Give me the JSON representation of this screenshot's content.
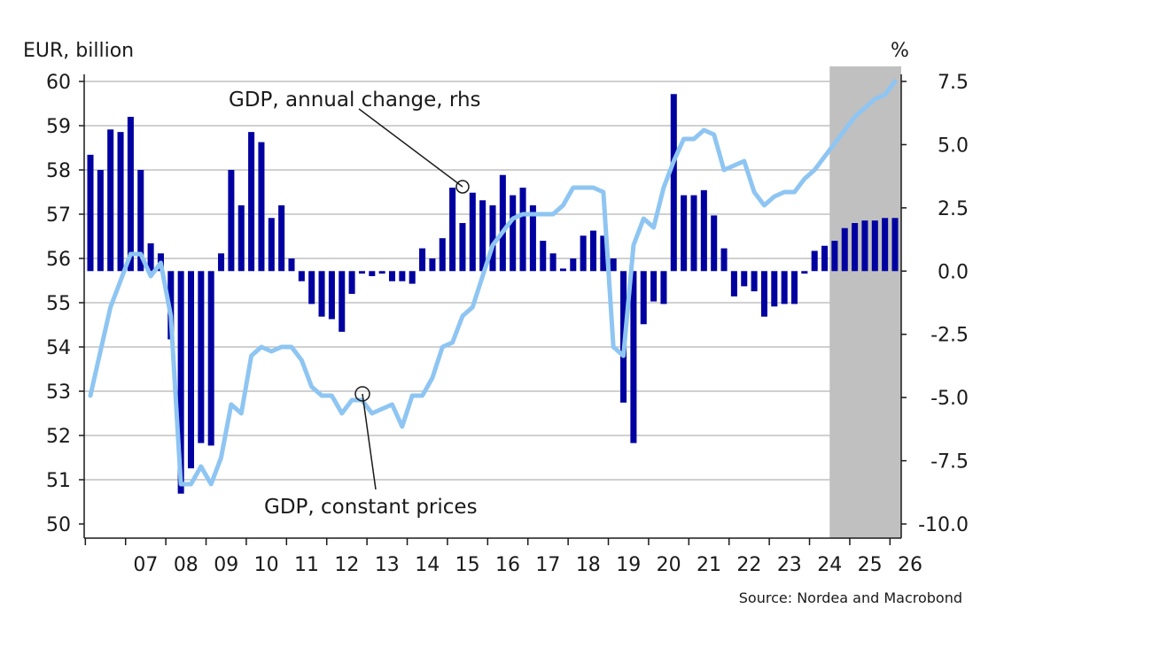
{
  "chart_data": {
    "type": "bar",
    "ylabel": "EUR, billion",
    "y2label": "%",
    "ylim": [
      50,
      60
    ],
    "y2lim": [
      -10,
      7.5
    ],
    "yticks": [
      "60",
      "59",
      "58",
      "57",
      "56",
      "55",
      "54",
      "53",
      "52",
      "51",
      "50"
    ],
    "y2ticks": [
      "7.5",
      "5.0",
      "2.5",
      "0.0",
      "-2.5",
      "-5.0",
      "-7.5",
      "-10.0"
    ],
    "xticks": [
      "07",
      "08",
      "09",
      "10",
      "11",
      "12",
      "13",
      "14",
      "15",
      "16",
      "17",
      "18",
      "19",
      "20",
      "21",
      "22",
      "23",
      "24",
      "25",
      "26"
    ],
    "forecast_shading": "from 2024 Q3",
    "grid": true,
    "series": [
      {
        "name": "GDP, annual change, rhs",
        "type": "bar",
        "axis": "right",
        "color": "#0000a0",
        "start": "2006 Q1",
        "values": [
          4.6,
          4.0,
          5.6,
          5.5,
          6.1,
          4.0,
          1.1,
          0.7,
          -2.7,
          -8.8,
          -7.8,
          -6.8,
          -6.9,
          0.7,
          4.0,
          2.6,
          5.5,
          5.1,
          2.1,
          2.6,
          0.5,
          -0.4,
          -1.3,
          -1.8,
          -1.9,
          -2.4,
          -0.9,
          -0.1,
          -0.2,
          -0.1,
          -0.4,
          -0.4,
          -0.5,
          0.9,
          0.5,
          1.3,
          3.3,
          1.9,
          3.1,
          2.8,
          2.6,
          3.8,
          3.0,
          3.3,
          2.6,
          1.2,
          0.7,
          0.1,
          0.5,
          1.4,
          1.6,
          1.4,
          0.5,
          -5.2,
          -6.8,
          -2.1,
          -1.2,
          -1.3,
          7.0,
          3.0,
          3.0,
          3.2,
          2.2,
          0.9,
          -1.0,
          -0.6,
          -0.8,
          -1.8,
          -1.4,
          -1.3,
          -1.3,
          -0.1,
          0.8,
          1.0,
          1.2,
          1.7,
          1.9,
          2.0,
          2.0,
          2.1,
          2.1
        ]
      },
      {
        "name": "GDP, constant prices",
        "type": "line",
        "axis": "left",
        "color": "#8ec5f2",
        "start": "2006 Q1",
        "values": [
          52.9,
          53.9,
          54.9,
          55.5,
          56.1,
          56.1,
          55.6,
          55.9,
          54.7,
          50.9,
          50.9,
          51.3,
          50.9,
          51.5,
          52.7,
          52.5,
          53.8,
          54.0,
          53.9,
          54.0,
          54.0,
          53.7,
          53.1,
          52.9,
          52.9,
          52.5,
          52.8,
          52.8,
          52.5,
          52.6,
          52.7,
          52.2,
          52.9,
          52.9,
          53.3,
          54.0,
          54.1,
          54.7,
          54.9,
          55.6,
          56.3,
          56.6,
          56.9,
          57.0,
          57.0,
          57.0,
          57.0,
          57.2,
          57.6,
          57.6,
          57.6,
          57.5,
          54.0,
          53.8,
          56.3,
          56.9,
          56.7,
          57.6,
          58.2,
          58.7,
          58.7,
          58.9,
          58.8,
          58.0,
          58.1,
          58.2,
          57.5,
          57.2,
          57.4,
          57.5,
          57.5,
          57.8,
          58.0,
          58.3,
          58.6,
          58.9,
          59.2,
          59.4,
          59.6,
          59.7,
          60.0
        ]
      }
    ]
  },
  "annotations": {
    "bars_label": "GDP, annual change, rhs",
    "line_label": "GDP, constant prices"
  },
  "footer": {
    "source": "Source: Nordea and Macrobond"
  }
}
